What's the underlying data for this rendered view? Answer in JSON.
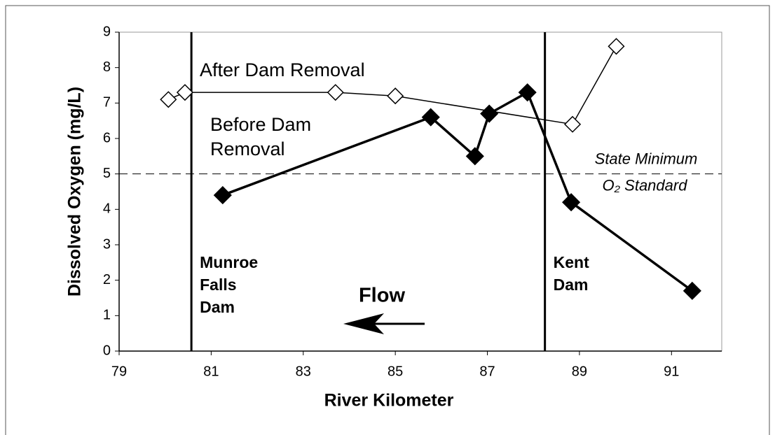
{
  "chart_data": {
    "type": "line",
    "xlabel": "River Kilometer",
    "ylabel": "Dissolved Oxygen (mg/L)",
    "xlim": [
      79,
      92
    ],
    "xticks": [
      79,
      81,
      83,
      85,
      87,
      89,
      91
    ],
    "ylim": [
      0,
      9
    ],
    "yticks": [
      0,
      1,
      2,
      3,
      4,
      5,
      6,
      7,
      8,
      9
    ],
    "series": [
      {
        "name": "After Dam Removal",
        "color": "#000000",
        "marker": "open-diamond",
        "x": [
          80.07,
          80.43,
          83.7,
          85.0,
          88.85,
          89.8
        ],
        "values": [
          7.1,
          7.3,
          7.3,
          7.2,
          6.4,
          8.6
        ]
      },
      {
        "name": "Before Dam Removal",
        "color": "#000000",
        "marker": "filled-diamond",
        "x": [
          81.25,
          85.77,
          86.73,
          87.04,
          87.87,
          88.82,
          91.45
        ],
        "values": [
          4.4,
          6.6,
          5.5,
          6.7,
          7.3,
          4.2,
          1.7
        ]
      }
    ],
    "series_labels": [
      [
        "After Dam Removal"
      ],
      [
        "Before Dam",
        "Removal"
      ]
    ],
    "dams": [
      {
        "x": 80.57,
        "label": [
          "Munroe",
          "Falls",
          "Dam"
        ]
      },
      {
        "x": 88.25,
        "label": [
          "Kent",
          "Dam"
        ]
      }
    ],
    "threshold": {
      "value": 5,
      "label": [
        "State Minimum",
        "O₂ Standard"
      ]
    },
    "flow_label": "Flow"
  }
}
